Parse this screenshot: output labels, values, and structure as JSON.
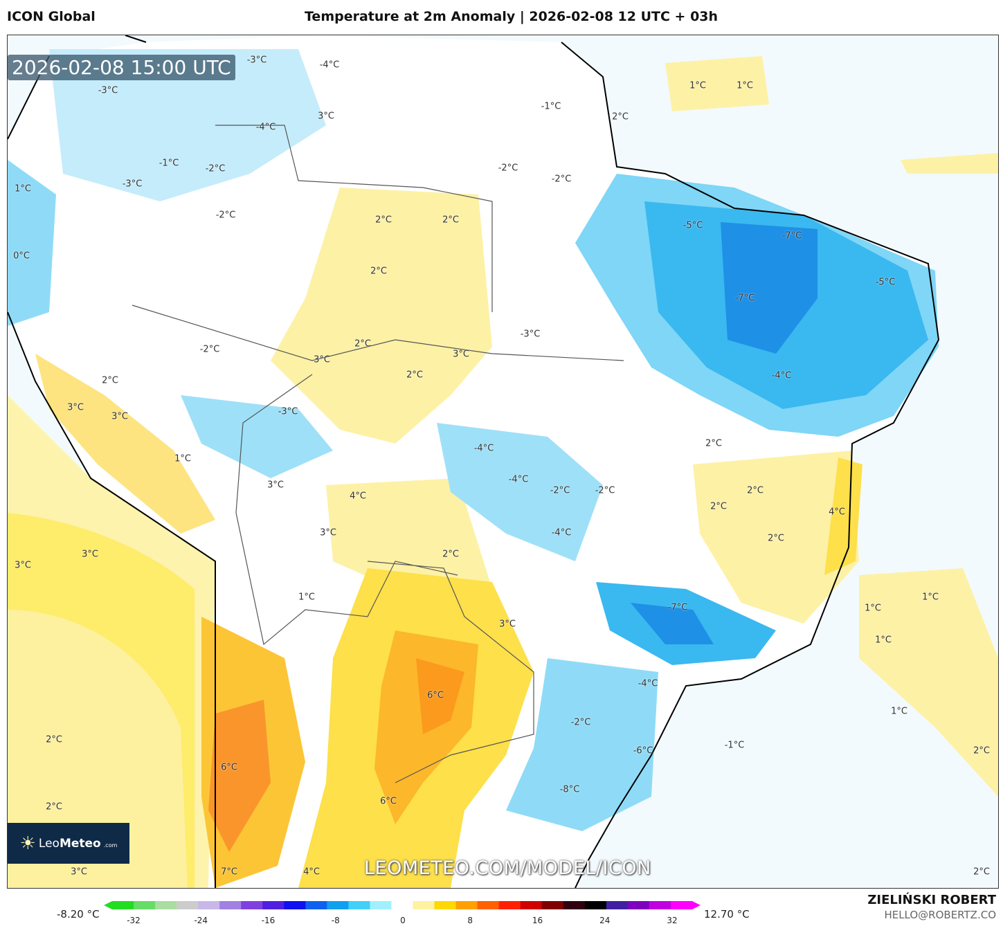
{
  "header": {
    "model": "ICON Global",
    "title": "Temperature at 2m Anomaly | 2026-02-08 12 UTC + 03h"
  },
  "map": {
    "valid_time": "2026-02-08 15:00 UTC",
    "watermark": "LEOMETEO.COM/MODEL/ICON",
    "logo_text": {
      "a": "Leo",
      "b": "Meteo",
      ".com": ".com"
    },
    "labels": [
      "1°C",
      "1°C",
      "-3°C",
      "-4°C",
      "-3°C",
      "3°C",
      "-4°C",
      "-1°C",
      "2°C",
      "-1°C",
      "-2°C",
      "-3°C",
      "-2°C",
      "-2°C",
      "1°C",
      "-2°C",
      "2°C",
      "2°C",
      "-5°C",
      "-7°C",
      "0°C",
      "2°C",
      "-5°C",
      "-7°C",
      "-3°C",
      "-2°C",
      "2°C",
      "3°C",
      "3°C",
      "2°C",
      "-4°C",
      "2°C",
      "3°C",
      "-3°C",
      "3°C",
      "2°C",
      "-4°C",
      "1°C",
      "-4°C",
      "3°C",
      "-2°C",
      "-2°C",
      "4°C",
      "2°C",
      "2°C",
      "4°C",
      "3°C",
      "-4°C",
      "2°C",
      "3°C",
      "2°C",
      "3°C",
      "1°C",
      "1°C",
      "1°C",
      "-7°C",
      "3°C",
      "1°C",
      "-4°C",
      "6°C",
      "1°C",
      "-2°C",
      "2°C",
      "-1°C",
      "2°C",
      "-6°C",
      "6°C",
      "-8°C",
      "6°C",
      "2°C",
      "3°C",
      "7°C",
      "4°C",
      "2°C"
    ]
  },
  "colorbar": {
    "min_label": "-8.20 °C",
    "max_label": "12.70 °C",
    "ticks": [
      "-32",
      "-24",
      "-16",
      "-8",
      "0",
      "8",
      "16",
      "24",
      "32"
    ],
    "colors": [
      "#22dd22",
      "#66dd66",
      "#aadda0",
      "#cccccc",
      "#c8b8e8",
      "#a080e0",
      "#8040e0",
      "#5020e0",
      "#1010f0",
      "#1060f0",
      "#10a0f0",
      "#40d0f8",
      "#a0f0ff",
      "#ffffff",
      "#fff2a0",
      "#ffd800",
      "#ffa000",
      "#ff6000",
      "#ff2000",
      "#d00000",
      "#800000",
      "#300010",
      "#000000",
      "#4020a0",
      "#8000c0",
      "#c000e0",
      "#ff00ff"
    ]
  },
  "footer": {
    "author": "ZIELIŃSKI ROBERT",
    "email": "HELLO@ROBERTZ.CO"
  }
}
